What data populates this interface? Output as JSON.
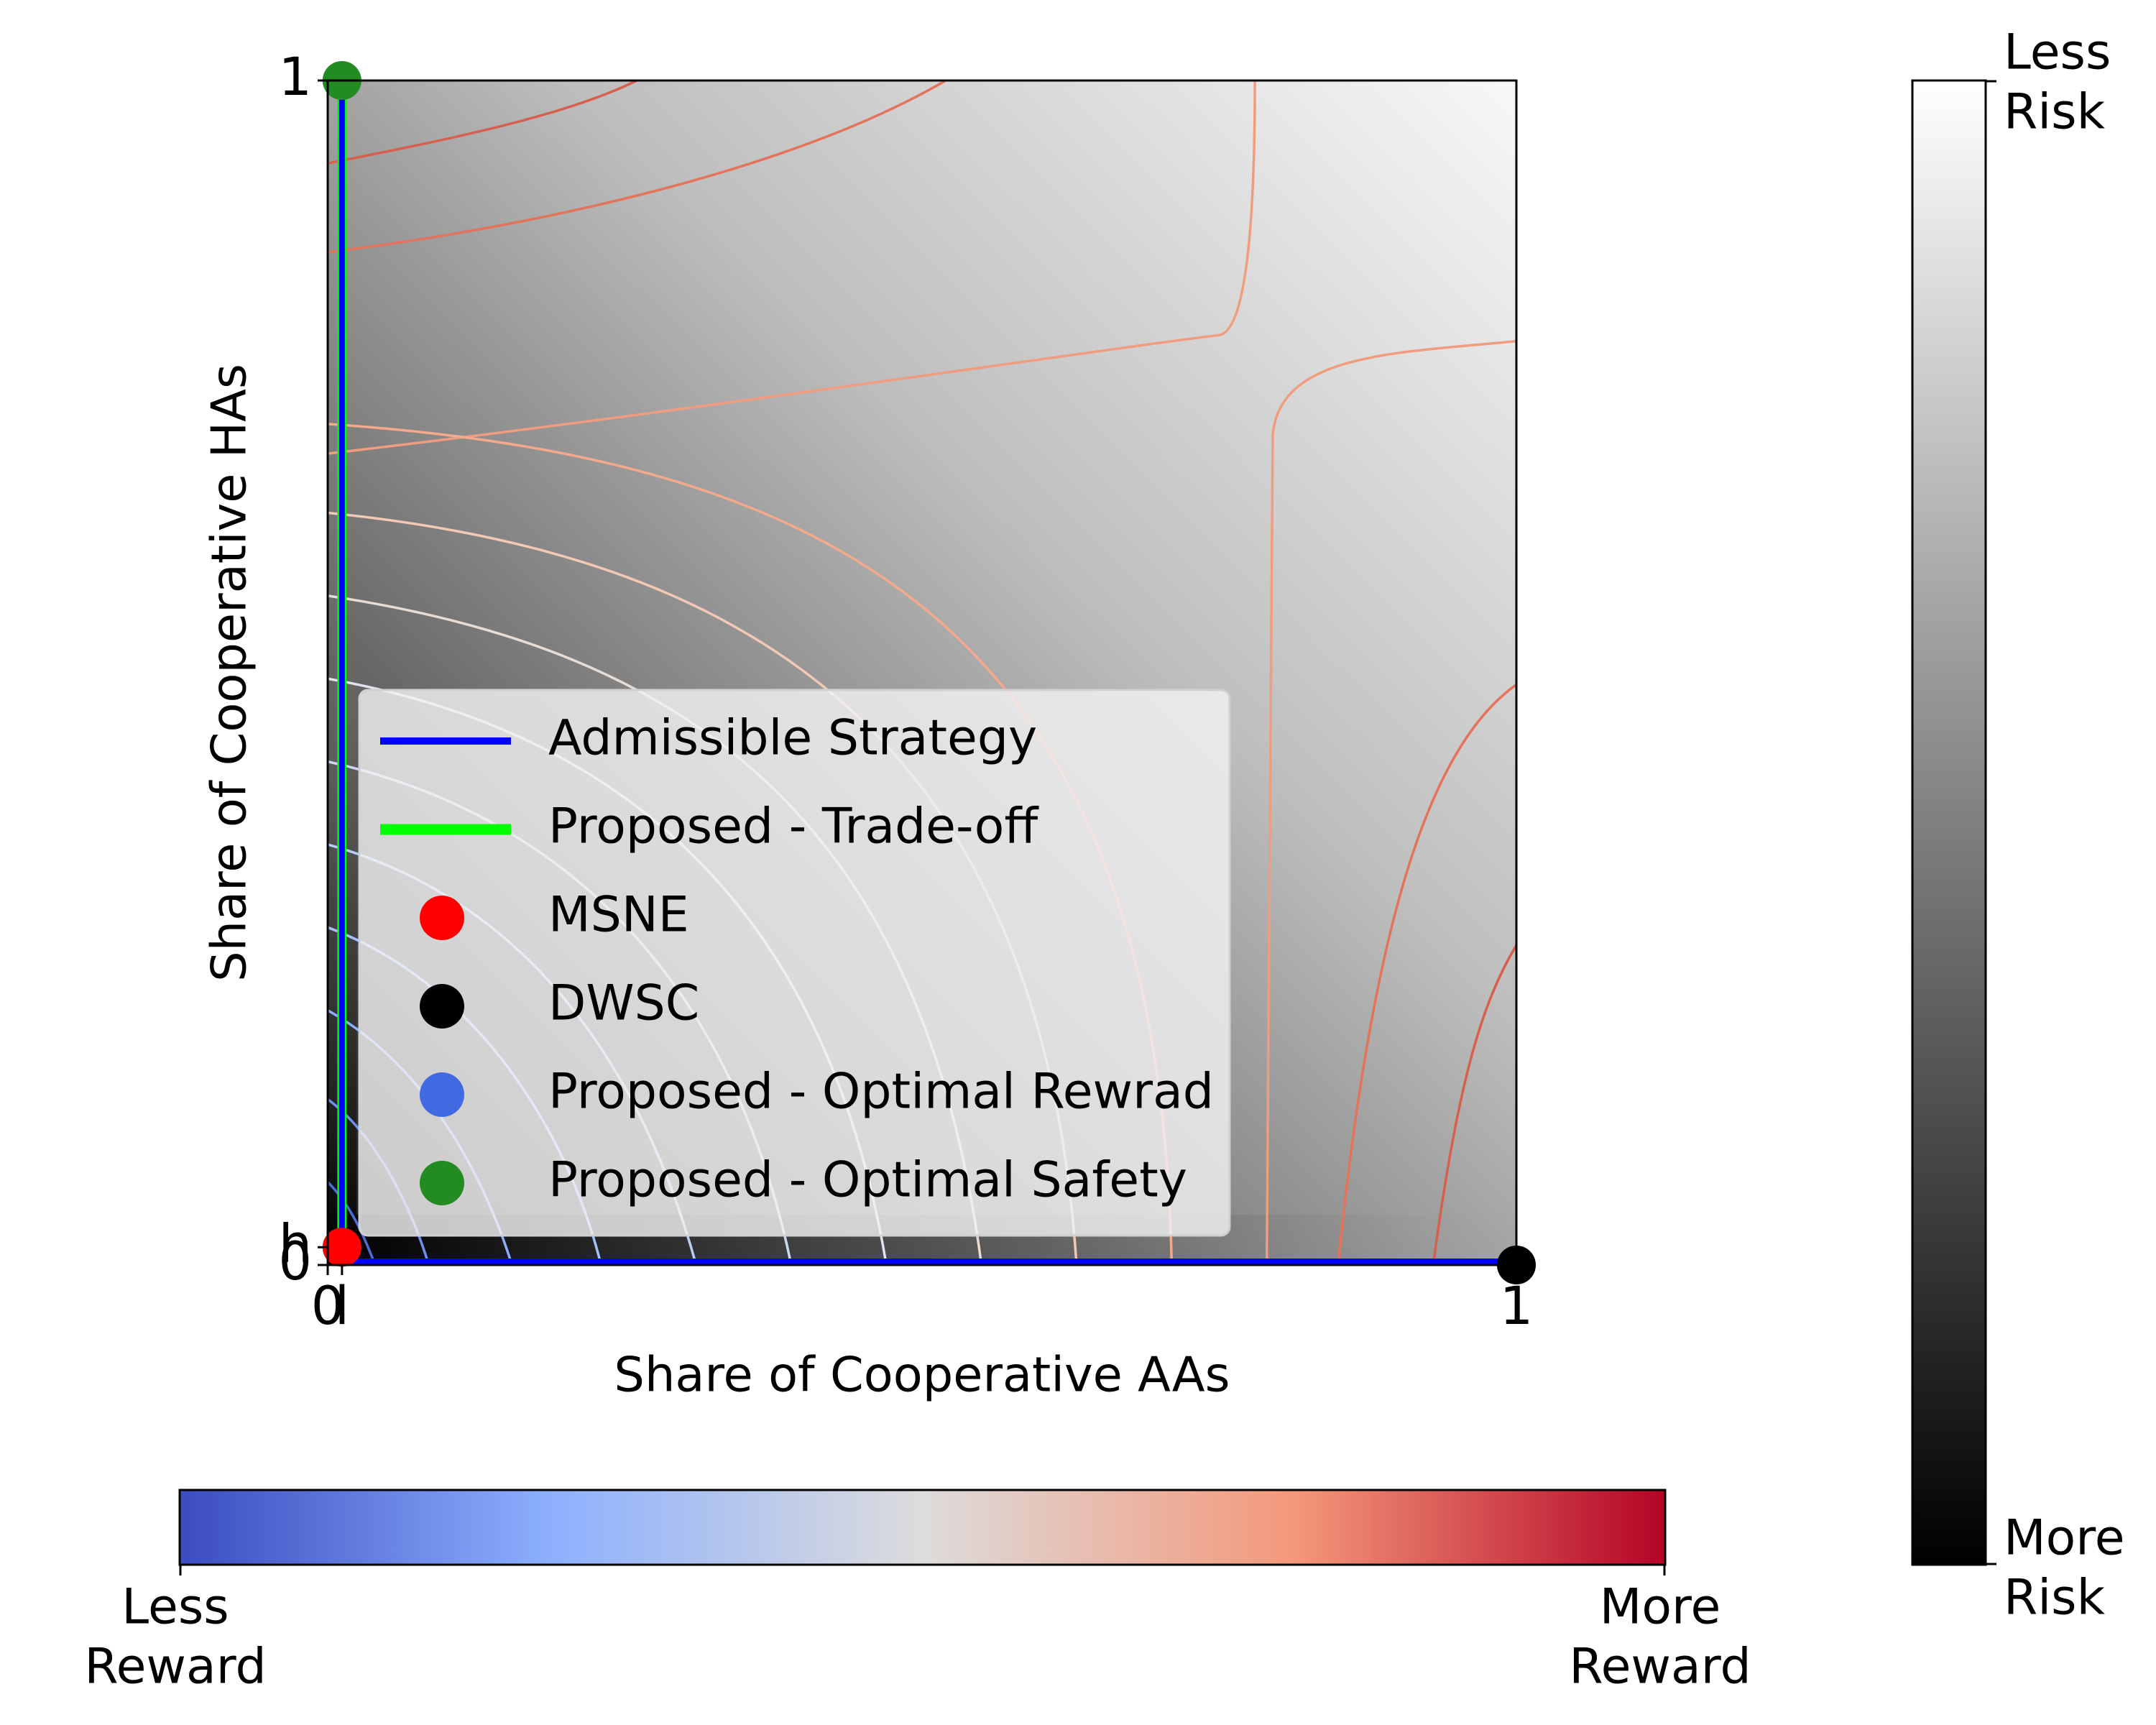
{
  "chart_data": {
    "type": "scatter",
    "xlabel": "Share of Cooperative AAs",
    "ylabel": "Share of Cooperative HAs",
    "xlim": [
      0,
      1
    ],
    "ylim": [
      0,
      1
    ],
    "xticks": [
      0,
      {
        "value": 0.012,
        "label": "l"
      },
      1
    ],
    "yticks": [
      0,
      {
        "value": 0.015,
        "label": "h"
      },
      1
    ],
    "lines": [
      {
        "name": "Admissible Strategy",
        "color": "#0000ff",
        "x": [
          0.012,
          0.012,
          1
        ],
        "y": [
          1,
          0.003,
          0.003
        ]
      },
      {
        "name": "Proposed - Trade-off",
        "color": "#00ff00",
        "x": [
          0.012,
          0.012
        ],
        "y": [
          0.015,
          1
        ]
      }
    ],
    "points": [
      {
        "name": "MSNE",
        "color": "#ff0000",
        "x": 0.012,
        "y": 0.015
      },
      {
        "name": "DWSC",
        "color": "#000000",
        "x": 1,
        "y": 0
      },
      {
        "name": "Proposed - Optimal Rewrad",
        "color": "#4169e1",
        "x": 0.012,
        "y": 0.015
      },
      {
        "name": "Proposed - Optimal Safety",
        "color": "#228b22",
        "x": 0.012,
        "y": 1
      }
    ],
    "colorbars": {
      "risk": {
        "high": [
          "Less",
          "Risk"
        ],
        "low": [
          "More",
          "Risk"
        ]
      },
      "reward": {
        "low": [
          "Less",
          "Reward"
        ],
        "high": [
          "More",
          "Reward"
        ]
      }
    }
  }
}
